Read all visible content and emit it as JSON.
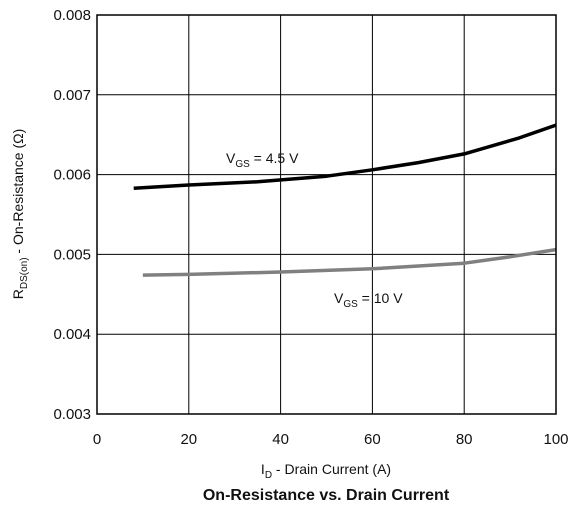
{
  "chart_data": {
    "type": "line",
    "title": "On-Resistance vs. Drain Current",
    "xlabel": {
      "main": "I",
      "sub": "D",
      "rest": " - Drain Current (A)"
    },
    "ylabel": {
      "main": "R",
      "sub": "DS(on)",
      "rest": " - On-Resistance (Ω)"
    },
    "xlim": [
      0,
      100
    ],
    "ylim": [
      0.003,
      0.008
    ],
    "x_ticks": [
      "0",
      "20",
      "40",
      "60",
      "80",
      "100"
    ],
    "y_ticks": [
      "0.003",
      "0.004",
      "0.005",
      "0.006",
      "0.007",
      "0.008"
    ],
    "grid": true,
    "series": [
      {
        "label": {
          "main": "V",
          "sub": "GS",
          "rest": " = 4.5 V"
        },
        "color": "#000000",
        "x": [
          8,
          20,
          35,
          50,
          60,
          70,
          80,
          92,
          100
        ],
        "y": [
          0.00583,
          0.00587,
          0.00591,
          0.00598,
          0.00606,
          0.00615,
          0.00626,
          0.00646,
          0.00662
        ]
      },
      {
        "label": {
          "main": "V",
          "sub": "GS",
          "rest": " = 10 V"
        },
        "color": "#808080",
        "x": [
          10,
          20,
          40,
          60,
          80,
          90,
          100
        ],
        "y": [
          0.00474,
          0.00475,
          0.00478,
          0.00482,
          0.00489,
          0.00497,
          0.00506
        ]
      }
    ]
  }
}
